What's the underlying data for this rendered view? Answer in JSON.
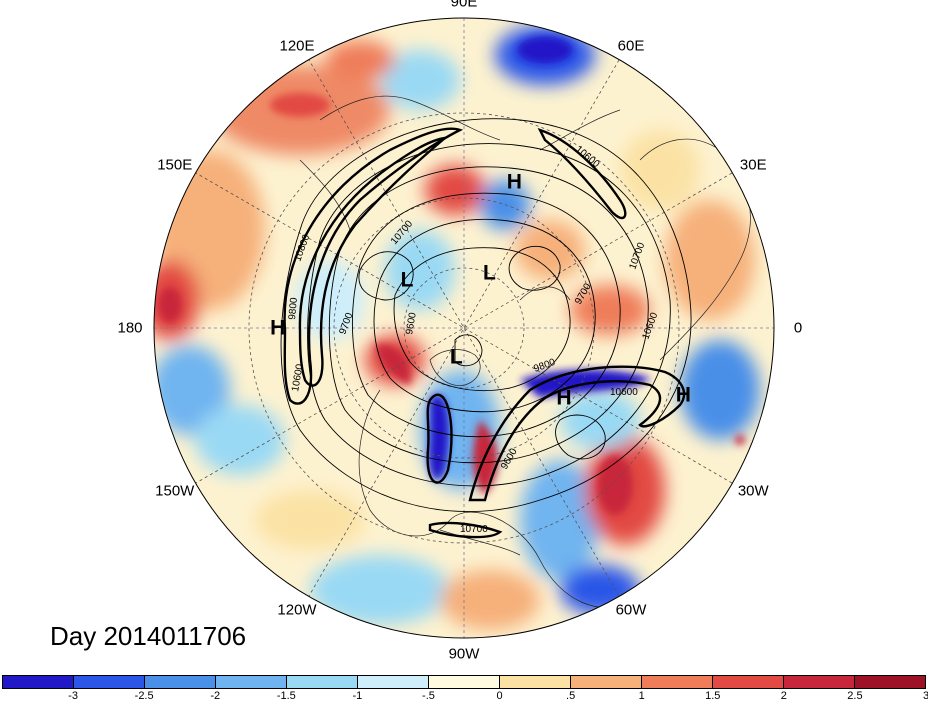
{
  "title": "Day 2014011706",
  "longitude_labels": [
    {
      "name": "lon-90e",
      "text": "90E",
      "lon": 90
    },
    {
      "name": "lon-60e",
      "text": "60E",
      "lon": 60
    },
    {
      "name": "lon-30e",
      "text": "30E",
      "lon": 30
    },
    {
      "name": "lon-0",
      "text": "0",
      "lon": 0
    },
    {
      "name": "lon-30w",
      "text": "30W",
      "lon": -30
    },
    {
      "name": "lon-60w",
      "text": "60W",
      "lon": -60
    },
    {
      "name": "lon-90w",
      "text": "90W",
      "lon": -90
    },
    {
      "name": "lon-120w",
      "text": "120W",
      "lon": -120
    },
    {
      "name": "lon-150w",
      "text": "150W",
      "lon": -150
    },
    {
      "name": "lon-180",
      "text": "180",
      "lon": 180
    },
    {
      "name": "lon-150e",
      "text": "150E",
      "lon": 150
    },
    {
      "name": "lon-120e",
      "text": "120E",
      "lon": 120
    }
  ],
  "pressure_systems": [
    {
      "type": "H",
      "lon": 71,
      "lat": 37
    },
    {
      "type": "H",
      "lon": 180,
      "lat": 28
    },
    {
      "type": "H",
      "lon": -17,
      "lat": 17
    },
    {
      "type": "H",
      "lon": -35,
      "lat": 47
    },
    {
      "type": "L",
      "lon": 140,
      "lat": 63
    },
    {
      "type": "L",
      "lon": 65,
      "lat": 68
    },
    {
      "type": "L",
      "lon": -105,
      "lat": 79
    }
  ],
  "contour_labels": [
    "10800",
    "10600",
    "10700",
    "9700",
    "9600",
    "9800",
    "10600",
    "9700",
    "10600",
    "9800",
    "10600",
    "10700",
    "9600",
    "10700"
  ],
  "colorbar": {
    "colors": [
      "#2118c8",
      "#2b56e8",
      "#4a8fe8",
      "#6fb4f0",
      "#9ad9f4",
      "#cdeefa",
      "#fffbe0",
      "#fbe2a4",
      "#f6b07a",
      "#ef7d5a",
      "#e24a43",
      "#c8263a",
      "#9e1227"
    ],
    "tick_labels": [
      "-3",
      "-2.5",
      "-2",
      "-1.5",
      "-1",
      "-.5",
      "0",
      ".5",
      "1",
      "1.5",
      "2",
      "2.5",
      "3"
    ]
  }
}
